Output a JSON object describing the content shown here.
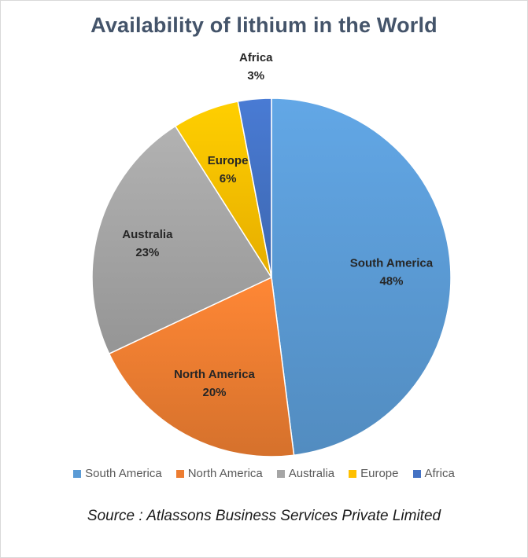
{
  "chart_data": {
    "type": "pie",
    "title": "Availability of lithium in the World",
    "categories": [
      "South America",
      "North America",
      "Australia",
      "Europe",
      "Africa"
    ],
    "values": [
      48,
      20,
      23,
      6,
      3
    ],
    "labels": [
      "48%",
      "20%",
      "23%",
      "6%",
      "3%"
    ],
    "colors": [
      "#5b9bd5",
      "#ed7d31",
      "#a5a5a5",
      "#ffc000",
      "#4472c4"
    ],
    "legend_position": "bottom",
    "source": "Source : Atlassons Business Services Private Limited"
  }
}
